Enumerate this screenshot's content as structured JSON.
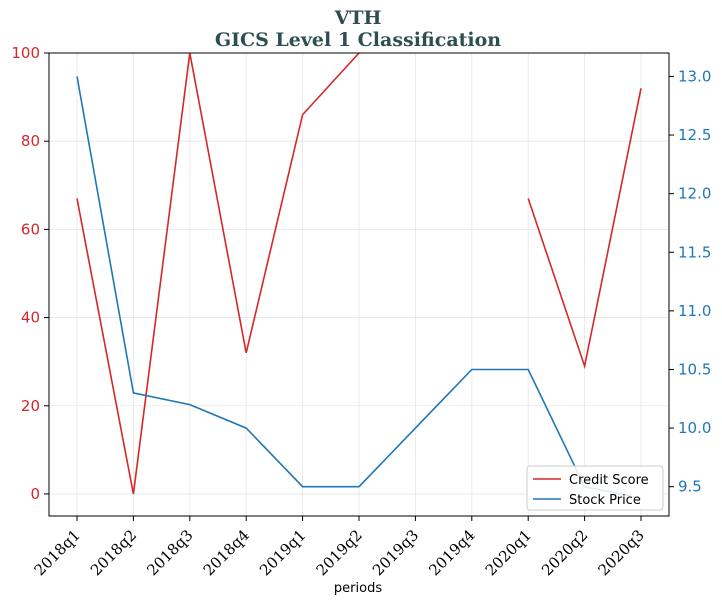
{
  "chart_data": {
    "type": "line",
    "title": "VTH",
    "subtitle": "GICS Level 1 Classification",
    "xlabel": "periods",
    "ylabel_left": "",
    "ylabel_right": "",
    "categories": [
      "2018q1",
      "2018q2",
      "2018q3",
      "2018q4",
      "2019q1",
      "2019q2",
      "2019q3",
      "2019q4",
      "2020q1",
      "2020q2",
      "2020q3"
    ],
    "y_left": {
      "lim": [
        -5,
        100
      ],
      "ticks": [
        0,
        20,
        40,
        60,
        80,
        100
      ],
      "color": "#d62728"
    },
    "y_right": {
      "lim": [
        9.25,
        13.2
      ],
      "ticks": [
        "9.5",
        "10.0",
        "10.5",
        "11.0",
        "11.5",
        "12.0",
        "12.5",
        "13.0"
      ],
      "color": "#1f77b4"
    },
    "grid": true,
    "legend_position": "bottom-right",
    "series": [
      {
        "name": "Credit Score",
        "axis": "left",
        "color": "#d62728",
        "values": [
          67,
          0,
          100,
          32,
          86,
          100,
          106,
          null,
          67,
          29,
          92
        ]
      },
      {
        "name": "Stock Price",
        "axis": "right",
        "color": "#1f77b4",
        "values": [
          13.0,
          10.3,
          10.2,
          10.0,
          9.5,
          9.5,
          10.0,
          10.5,
          10.5,
          9.5,
          9.4
        ]
      }
    ]
  }
}
